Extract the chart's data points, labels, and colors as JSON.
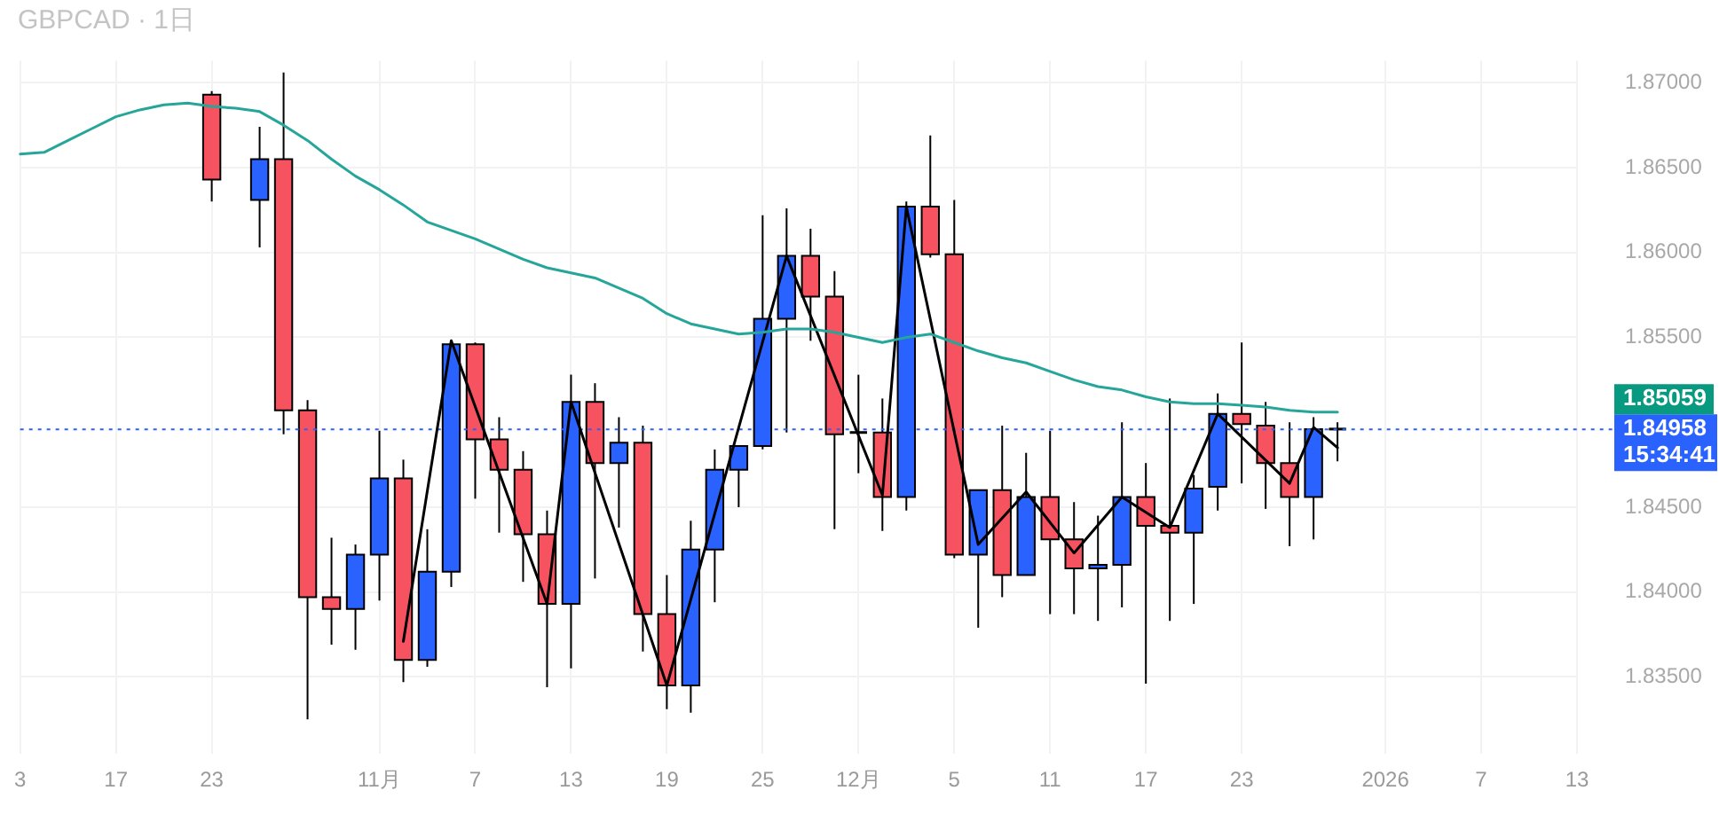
{
  "chart_data": {
    "type": "candlestick",
    "title": "GBPCAD · 1日",
    "categories": [
      "3",
      null,
      null,
      null,
      "17",
      null,
      null,
      null,
      "23",
      null,
      null,
      null,
      null,
      null,
      null,
      "11月",
      null,
      null,
      null,
      "7",
      null,
      null,
      null,
      "13",
      null,
      null,
      null,
      "19",
      null,
      null,
      null,
      "25",
      null,
      null,
      null,
      "12月",
      null,
      null,
      null,
      "5",
      null,
      null,
      null,
      "11",
      null,
      null,
      null,
      "17",
      null,
      null,
      null,
      "23",
      null,
      null,
      null,
      null,
      null,
      "2026",
      null,
      null,
      null,
      "7",
      null,
      null,
      null,
      "13"
    ],
    "ohlc": [
      null,
      null,
      null,
      null,
      null,
      null,
      null,
      null,
      [
        1.8693,
        1.8695,
        1.863,
        1.8643
      ],
      null,
      [
        1.8631,
        1.8674,
        1.8603,
        1.8655
      ],
      [
        1.8655,
        1.8706,
        1.8493,
        1.8507
      ],
      [
        1.8507,
        1.8513,
        1.8325,
        1.8397
      ],
      [
        1.8397,
        1.8432,
        1.8369,
        1.839
      ],
      [
        1.839,
        1.8428,
        1.8366,
        1.8422
      ],
      [
        1.8422,
        1.8495,
        1.8395,
        1.8467
      ],
      [
        1.8467,
        1.8478,
        1.8347,
        1.836
      ],
      [
        1.836,
        1.8437,
        1.8356,
        1.8412
      ],
      [
        1.8412,
        1.8548,
        1.8403,
        1.8546
      ],
      [
        1.8546,
        1.8547,
        1.8455,
        1.849
      ],
      [
        1.849,
        1.8503,
        1.8435,
        1.8472
      ],
      [
        1.8472,
        1.8483,
        1.8406,
        1.8434
      ],
      [
        1.8434,
        1.8448,
        1.8344,
        1.8393
      ],
      [
        1.8393,
        1.8528,
        1.8355,
        1.8512
      ],
      [
        1.8512,
        1.8523,
        1.8408,
        1.8476
      ],
      [
        1.8476,
        1.8503,
        1.8438,
        1.8488
      ],
      [
        1.8488,
        1.8498,
        1.8365,
        1.8387
      ],
      [
        1.8387,
        1.841,
        1.8331,
        1.8345
      ],
      [
        1.8345,
        1.8442,
        1.8329,
        1.8425
      ],
      [
        1.8425,
        1.8484,
        1.8394,
        1.8472
      ],
      [
        1.8472,
        1.8486,
        1.845,
        1.8486
      ],
      [
        1.8486,
        1.8622,
        1.8484,
        1.8561
      ],
      [
        1.8561,
        1.8626,
        1.8494,
        1.8598
      ],
      [
        1.8598,
        1.8614,
        1.8548,
        1.8574
      ],
      [
        1.8574,
        1.8589,
        1.8437,
        1.8493
      ],
      [
        1.8494,
        1.8528,
        1.847,
        1.8494
      ],
      [
        1.8494,
        1.8514,
        1.8436,
        1.8456
      ],
      [
        1.8456,
        1.863,
        1.8448,
        1.8627
      ],
      [
        1.8627,
        1.8669,
        1.8597,
        1.8599
      ],
      [
        1.8599,
        1.8631,
        1.842,
        1.8422
      ],
      [
        1.8422,
        1.846,
        1.8379,
        1.846
      ],
      [
        1.846,
        1.8498,
        1.8397,
        1.841
      ],
      [
        1.841,
        1.8482,
        1.841,
        1.8456
      ],
      [
        1.8456,
        1.8495,
        1.8387,
        1.8431
      ],
      [
        1.8431,
        1.8453,
        1.8387,
        1.8414
      ],
      [
        1.8414,
        1.8445,
        1.8383,
        1.8416
      ],
      [
        1.8416,
        1.85,
        1.8391,
        1.8456
      ],
      [
        1.8456,
        1.8476,
        1.8346,
        1.8439
      ],
      [
        1.8439,
        1.8514,
        1.8383,
        1.8435
      ],
      [
        1.8435,
        1.8469,
        1.8393,
        1.8461
      ],
      [
        1.8462,
        1.8517,
        1.8448,
        1.8505
      ],
      [
        1.8505,
        1.8547,
        1.8464,
        1.8499
      ],
      [
        1.8498,
        1.8512,
        1.8449,
        1.8476
      ],
      [
        1.8476,
        1.85,
        1.8427,
        1.8456
      ],
      [
        1.8456,
        1.8503,
        1.8431,
        1.8496
      ],
      [
        1.8496,
        1.85,
        1.8477,
        1.8496
      ],
      null,
      null,
      null,
      null,
      null,
      null,
      null,
      null,
      null,
      null
    ],
    "colors": [
      null,
      null,
      null,
      null,
      null,
      null,
      null,
      null,
      "#f7525f",
      null,
      "#2962ff",
      "#f7525f",
      "#f7525f",
      "#f7525f",
      "#2962ff",
      "#2962ff",
      "#f7525f",
      "#2962ff",
      "#2962ff",
      "#f7525f",
      "#f7525f",
      "#f7525f",
      "#f7525f",
      "#2962ff",
      "#f7525f",
      "#2962ff",
      "#f7525f",
      "#f7525f",
      "#2962ff",
      "#2962ff",
      "#2962ff",
      "#2962ff",
      "#2962ff",
      "#f7525f",
      "#f7525f",
      "#000000",
      "#f7525f",
      "#2962ff",
      "#f7525f",
      "#f7525f",
      "#2962ff",
      "#f7525f",
      "#2962ff",
      "#f7525f",
      "#f7525f",
      "#2962ff",
      "#2962ff",
      "#f7525f",
      "#f7525f",
      "#2962ff",
      "#2962ff",
      "#f7525f",
      "#f7525f",
      "#f7525f",
      "#2962ff",
      "#000000",
      null,
      null,
      null,
      null,
      null,
      null,
      null,
      null,
      null,
      null
    ],
    "series": [
      {
        "type": "line",
        "color": "#26a69a",
        "values": [
          1.8658,
          1.8659,
          1.8666,
          1.8673,
          1.868,
          1.8684,
          1.8687,
          1.8688,
          1.8686,
          1.8685,
          1.8683,
          1.8675,
          1.8666,
          1.8655,
          1.8645,
          1.8637,
          1.8628,
          1.8618,
          1.8613,
          1.8608,
          1.8602,
          1.8596,
          1.8591,
          1.8588,
          1.8585,
          1.8579,
          1.8573,
          1.8564,
          1.8558,
          1.8555,
          1.8552,
          1.8553,
          1.8555,
          1.8555,
          1.8553,
          1.855,
          1.8547,
          1.855,
          1.8552,
          1.8547,
          1.8542,
          1.8538,
          1.8535,
          1.853,
          1.8525,
          1.8521,
          1.8519,
          1.8515,
          1.8512,
          1.8511,
          1.8511,
          1.851,
          1.8509,
          1.8507,
          1.8506,
          1.8506,
          null,
          null,
          null,
          null,
          null,
          null,
          null,
          null,
          null,
          null
        ]
      },
      {
        "type": "line",
        "color": "#000000",
        "values": [
          null,
          null,
          null,
          null,
          null,
          null,
          null,
          null,
          null,
          null,
          null,
          null,
          null,
          null,
          null,
          null,
          1.8371,
          null,
          1.8548,
          null,
          null,
          null,
          1.8393,
          1.8512,
          null,
          null,
          null,
          1.8345,
          null,
          null,
          null,
          null,
          1.8598,
          null,
          null,
          null,
          1.8457,
          1.8627,
          null,
          null,
          1.8428,
          null,
          1.8459,
          null,
          1.8423,
          null,
          1.8456,
          null,
          1.8438,
          null,
          1.8505,
          null,
          null,
          1.8464,
          1.8497,
          1.8485,
          null,
          null,
          null,
          null,
          null,
          null,
          null,
          null,
          null,
          null
        ]
      }
    ],
    "ylim": [
      1.8305,
      1.8713
    ],
    "yticks": [
      {
        "value": 1.835,
        "label": "1.83500"
      },
      {
        "value": 1.84,
        "label": "1.84000"
      },
      {
        "value": 1.845,
        "label": "1.84500"
      },
      {
        "value": 1.855,
        "label": "1.85500"
      },
      {
        "value": 1.86,
        "label": "1.86000"
      },
      {
        "value": 1.865,
        "label": "1.86500"
      },
      {
        "value": 1.87,
        "label": "1.87000"
      }
    ],
    "grid": true,
    "ref_lines": [
      {
        "axis": "y",
        "value": 1.84958,
        "label": "1.84958",
        "color": "#2962ff",
        "line_style": "dotted"
      }
    ],
    "annotations": [
      "1.85059",
      "15:34:41"
    ]
  }
}
